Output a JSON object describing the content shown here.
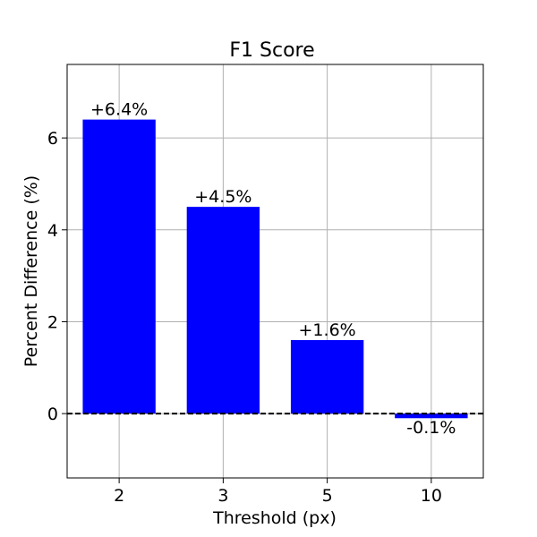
{
  "chart_data": {
    "type": "bar",
    "title": "F1 Score",
    "xlabel": "Threshold (px)",
    "ylabel": "Percent Difference (%)",
    "categories": [
      "2",
      "3",
      "5",
      "10"
    ],
    "values": [
      6.4,
      4.5,
      1.6,
      -0.1
    ],
    "data_labels": [
      "+6.4%",
      "+4.5%",
      "+1.6%",
      "-0.1%"
    ],
    "ylim": [
      -1.4,
      7.6
    ],
    "yticks": [
      0,
      2,
      4,
      6
    ],
    "grid": true,
    "bar_color": "#0000ff",
    "reference_line": {
      "y": 0,
      "style": "dashed",
      "color": "#000000"
    }
  }
}
